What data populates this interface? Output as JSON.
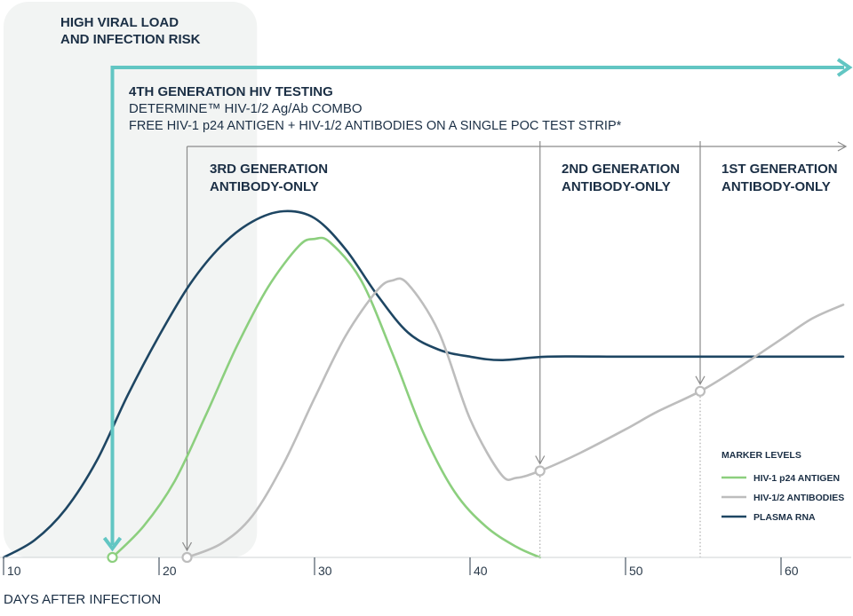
{
  "chart_data": {
    "type": "line",
    "title": "",
    "xlabel": "DAYS AFTER INFECTION",
    "ylabel": "",
    "xlim": [
      10,
      64
    ],
    "ylim": [
      0,
      1
    ],
    "x_ticks": [
      10,
      20,
      30,
      40,
      50,
      60
    ],
    "grid": false,
    "legend": {
      "title": "MARKER LEVELS",
      "position": "bottom-right",
      "entries": [
        {
          "name": "HIV-1 p24 ANTIGEN",
          "color": "#8ccf7e"
        },
        {
          "name": "HIV-1/2 ANTIBODIES",
          "color": "#bdbdbd"
        },
        {
          "name": "PLASMA RNA",
          "color": "#1e4663"
        }
      ]
    },
    "series": [
      {
        "name": "PLASMA RNA",
        "color": "#1e4663",
        "points": [
          [
            10,
            0
          ],
          [
            12,
            0.05
          ],
          [
            14,
            0.14
          ],
          [
            16,
            0.28
          ],
          [
            18,
            0.47
          ],
          [
            20,
            0.64
          ],
          [
            22,
            0.79
          ],
          [
            24,
            0.9
          ],
          [
            26,
            0.97
          ],
          [
            28,
            1.0
          ],
          [
            30,
            0.98
          ],
          [
            32,
            0.89
          ],
          [
            34,
            0.76
          ],
          [
            36,
            0.65
          ],
          [
            38,
            0.6
          ],
          [
            40,
            0.58
          ],
          [
            42,
            0.57
          ],
          [
            45,
            0.58
          ],
          [
            50,
            0.58
          ],
          [
            55,
            0.58
          ],
          [
            60,
            0.58
          ],
          [
            64,
            0.58
          ]
        ]
      },
      {
        "name": "HIV-1 p24 ANTIGEN",
        "color": "#8ccf7e",
        "points": [
          [
            17,
            0
          ],
          [
            19,
            0.09
          ],
          [
            21,
            0.22
          ],
          [
            23,
            0.41
          ],
          [
            25,
            0.61
          ],
          [
            27,
            0.78
          ],
          [
            29,
            0.9
          ],
          [
            30,
            0.92
          ],
          [
            31,
            0.91
          ],
          [
            33,
            0.8
          ],
          [
            35,
            0.59
          ],
          [
            37,
            0.36
          ],
          [
            39,
            0.19
          ],
          [
            41,
            0.09
          ],
          [
            43,
            0.03
          ],
          [
            44.5,
            0
          ]
        ]
      },
      {
        "name": "HIV-1/2 ANTIBODIES",
        "color": "#bdbdbd",
        "points": [
          [
            21.8,
            0
          ],
          [
            24,
            0.04
          ],
          [
            26,
            0.12
          ],
          [
            28,
            0.27
          ],
          [
            30,
            0.46
          ],
          [
            32,
            0.64
          ],
          [
            34,
            0.77
          ],
          [
            35,
            0.8
          ],
          [
            36,
            0.79
          ],
          [
            38,
            0.65
          ],
          [
            40,
            0.4
          ],
          [
            42,
            0.24
          ],
          [
            43,
            0.23
          ],
          [
            44.5,
            0.25
          ],
          [
            47,
            0.3
          ],
          [
            50,
            0.37
          ],
          [
            52,
            0.42
          ],
          [
            54.8,
            0.48
          ],
          [
            57,
            0.54
          ],
          [
            60,
            0.63
          ],
          [
            62,
            0.69
          ],
          [
            64,
            0.73
          ]
        ]
      }
    ],
    "marker_points": [
      {
        "series": "HIV-1 p24 ANTIGEN",
        "x": 17,
        "y": 0
      },
      {
        "series": "HIV-1/2 ANTIBODIES",
        "x": 21.8,
        "y": 0
      },
      {
        "series": "HIV-1/2 ANTIBODIES",
        "x": 44.5,
        "y": 0.25
      },
      {
        "series": "HIV-1/2 ANTIBODIES",
        "x": 54.8,
        "y": 0.48
      }
    ],
    "shaded_region": {
      "label_line1": "HIGH VIRAL LOAD",
      "label_line2": "AND INFECTION RISK",
      "x_start": 10,
      "x_end": 26.3
    },
    "annotations": {
      "gen4": {
        "x_start": 17,
        "color": "#62c6c3",
        "line1": "4TH GENERATION HIV TESTING",
        "line2": "DETERMINE™ HIV-1/2 Ag/Ab  COMBO",
        "line3": "FREE HIV-1 p24  ANTIGEN + HIV-1/2 ANTIBODIES ON A SINGLE POC TEST STRIP*"
      },
      "gen3": {
        "x_start": 21.8,
        "line1": "3RD GENERATION",
        "line2": "ANTIBODY-ONLY"
      },
      "gen2": {
        "x_start": 44.5,
        "line1": "2ND GENERATION",
        "line2": "ANTIBODY-ONLY"
      },
      "gen1": {
        "x_start": 54.8,
        "line1": "1ST GENERATION",
        "line2": "ANTIBODY-ONLY"
      }
    }
  }
}
